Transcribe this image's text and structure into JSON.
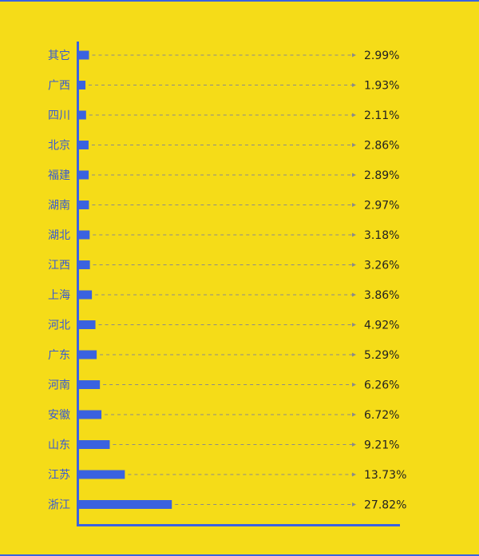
{
  "chart_data": {
    "type": "bar",
    "orientation": "horizontal",
    "categories": [
      "其它",
      "广西",
      "四川",
      "北京",
      "福建",
      "湖南",
      "湖北",
      "江西",
      "上海",
      "河北",
      "广东",
      "河南",
      "安徽",
      "山东",
      "江苏",
      "浙江"
    ],
    "values": [
      2.99,
      1.93,
      2.11,
      2.86,
      2.89,
      2.97,
      3.18,
      3.26,
      3.86,
      4.92,
      5.29,
      6.26,
      6.72,
      9.21,
      13.73,
      27.82
    ],
    "value_labels": [
      "2.99%",
      "1.93%",
      "2.11%",
      "2.86%",
      "2.89%",
      "2.97%",
      "3.18%",
      "3.26%",
      "3.86%",
      "4.92%",
      "5.29%",
      "6.26%",
      "6.72%",
      "9.21%",
      "13.73%",
      "27.82%"
    ],
    "unit": "%",
    "title": "",
    "xlabel": "",
    "ylabel": "",
    "grid": false,
    "legend": "none"
  },
  "colors": {
    "background": "#f5dc18",
    "bar": "#3a62e0",
    "axis": "#3a62e0",
    "category_text": "#3559d6",
    "value_text": "#222222",
    "leader_line": "#8a8a8a"
  }
}
